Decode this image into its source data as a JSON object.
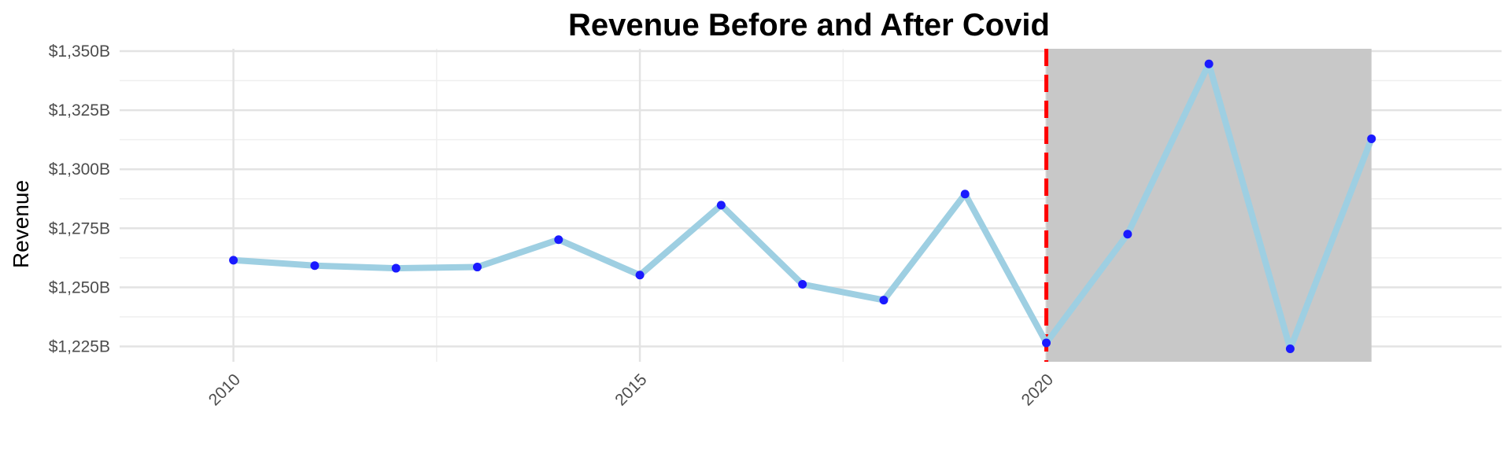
{
  "chart_data": {
    "type": "line",
    "title": "Revenue Before and After Covid",
    "xlabel": "",
    "ylabel": "Revenue",
    "x": [
      2010,
      2011,
      2012,
      2013,
      2014,
      2015,
      2016,
      2017,
      2018,
      2019,
      2020,
      2021,
      2022,
      2023,
      2024
    ],
    "series": [
      {
        "values": [
          1261.5,
          1259.2,
          1258.1,
          1258.6,
          1270.2,
          1255.2,
          1284.8,
          1251.3,
          1244.6,
          1289.5,
          1226.5,
          1272.5,
          1344.6,
          1224.0,
          1312.9
        ]
      }
    ],
    "ylim": [
      1218.5,
      1351
    ],
    "xlim": [
      2008.6,
      2025.6
    ],
    "y_ticks": [
      1225,
      1250,
      1275,
      1300,
      1325,
      1350
    ],
    "y_tick_labels": [
      "$1,225B",
      "$1,250B",
      "$1,275B",
      "$1,300B",
      "$1,325B",
      "$1,350B"
    ],
    "x_ticks": [
      2010,
      2015,
      2020
    ],
    "x_tick_labels": [
      "2010",
      "2015",
      "2020"
    ],
    "x_minor_ticks": [
      2012.5,
      2017.5,
      2022.5
    ],
    "y_minor_ticks": [
      1237.5,
      1262.5,
      1287.5,
      1312.5,
      1337.5
    ],
    "grid": true,
    "legend": "none",
    "shaded_region": {
      "x_start": 2020,
      "x_end": 2024,
      "color": "#c8c8c8"
    },
    "vline": {
      "x": 2020,
      "color": "#ff0000",
      "style": "dashed"
    },
    "colors": {
      "line": "#9ecfe2",
      "point": "#1a1aff",
      "grid_major": "#e3e3e3",
      "grid_minor": "#efefef"
    }
  }
}
